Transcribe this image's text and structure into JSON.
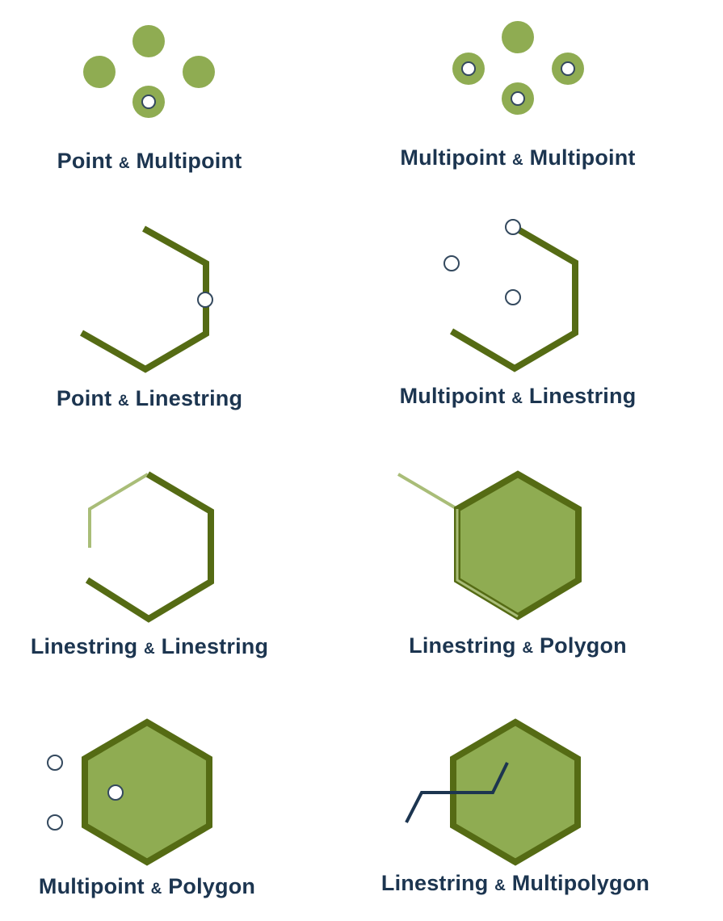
{
  "colors": {
    "dark_green": "#556b14",
    "mid_green": "#8fac52",
    "light_green": "#9ab867",
    "pale_line": "#a9bd78",
    "navy": "#1c3550",
    "point_outline": "#34495e",
    "white": "#ffffff"
  },
  "captions": [
    {
      "left": "Point",
      "amp": "&",
      "right": "Multipoint"
    },
    {
      "left": "Multipoint",
      "amp": "&",
      "right": "Multipoint"
    },
    {
      "left": "Point",
      "amp": "&",
      "right": "Linestring"
    },
    {
      "left": "Multipoint",
      "amp": "&",
      "right": "Linestring"
    },
    {
      "left": "Linestring",
      "amp": "&",
      "right": "Linestring"
    },
    {
      "left": "Linestring",
      "amp": "&",
      "right": "Polygon"
    },
    {
      "left": "Multipoint",
      "amp": "&",
      "right": "Polygon"
    },
    {
      "left": "Linestring",
      "amp": "&",
      "right": "Multipolygon"
    }
  ]
}
